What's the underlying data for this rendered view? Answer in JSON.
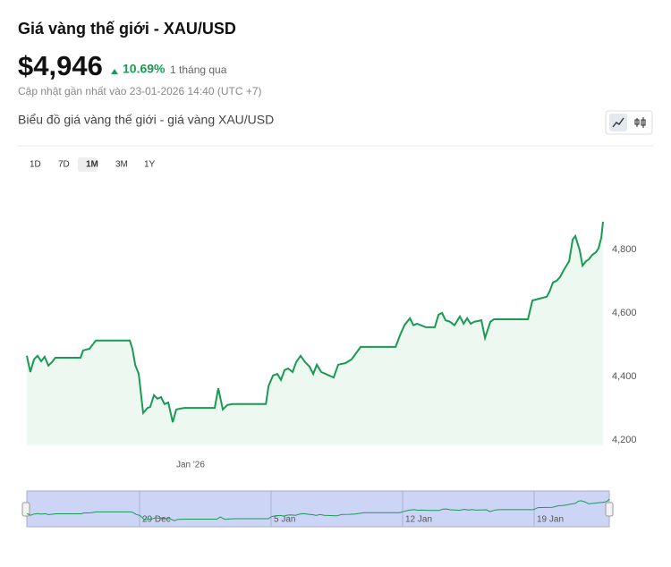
{
  "header": {
    "title": "Giá vàng thế giới - XAU/USD",
    "price": "$4,946",
    "change": "10.69%",
    "period": "1 tháng qua",
    "updated": "Cập nhật gần nhất vào 23-01-2026 14:40 (UTC +7)"
  },
  "chart_data": {
    "type": "line",
    "title": "Biểu đồ giá vàng thế giới - giá vàng XAU/USD",
    "ranges": [
      "1D",
      "7D",
      "1M",
      "3M",
      "1Y"
    ],
    "active_range": "1M",
    "x": [
      0,
      0.19,
      0.39,
      0.58,
      0.77,
      0.96,
      1.16,
      1.35,
      1.54,
      2.89,
      3.03,
      3.37,
      3.71,
      5.54,
      5.68,
      5.83,
      6.02,
      6.26,
      6.5,
      6.64,
      6.84,
      7.03,
      7.22,
      7.41,
      7.61,
      7.85,
      8.04,
      8.28,
      8.47,
      10.11,
      10.3,
      10.54,
      10.78,
      11.07,
      12.86,
      13,
      13.24,
      13.48,
      13.67,
      13.87,
      14.06,
      14.3,
      14.49,
      14.73,
      14.97,
      15.21,
      15.41,
      15.6,
      15.84,
      16.08,
      16.27,
      16.51,
      16.75,
      17.14,
      17.48,
      17.96,
      19.84,
      20.08,
      20.32,
      20.61,
      20.8,
      20.99,
      21.47,
      21.95,
      22.15,
      22.34,
      22.53,
      22.77,
      23.01,
      23.3,
      23.5,
      23.69,
      23.88,
      24.07,
      24.46,
      24.65,
      24.94,
      25.13,
      26.96,
      27.2,
      27.59,
      27.97,
      28.12,
      28.31,
      28.5,
      28.69,
      28.89,
      29.18,
      29.37,
      29.51,
      29.75,
      29.9,
      30.09,
      30.24,
      30.43,
      30.62,
      30.76,
      30.91,
      31
    ],
    "values": [
      4465,
      4414,
      4454,
      4465,
      4448,
      4462,
      4434,
      4445,
      4459,
      4459,
      4482,
      4487,
      4513,
      4513,
      4487,
      4437,
      4408,
      4285,
      4301,
      4304,
      4341,
      4330,
      4335,
      4313,
      4318,
      4256,
      4296,
      4299,
      4301,
      4301,
      4363,
      4296,
      4310,
      4313,
      4313,
      4369,
      4403,
      4408,
      4389,
      4420,
      4425,
      4414,
      4445,
      4465,
      4445,
      4431,
      4408,
      4437,
      4414,
      4408,
      4403,
      4397,
      4437,
      4442,
      4454,
      4493,
      4493,
      4530,
      4561,
      4583,
      4561,
      4566,
      4555,
      4555,
      4594,
      4600,
      4577,
      4572,
      4561,
      4589,
      4566,
      4583,
      4566,
      4572,
      4577,
      4521,
      4572,
      4580,
      4580,
      4639,
      4645,
      4651,
      4667,
      4696,
      4701,
      4713,
      4735,
      4763,
      4831,
      4842,
      4797,
      4749,
      4763,
      4769,
      4783,
      4791,
      4803,
      4837,
      4887
    ],
    "color": "#1a9a55",
    "fill": "#edf8f1",
    "xlim": [
      0,
      31
    ],
    "xticks": [
      {
        "value": 9,
        "label": "Jan '26"
      }
    ],
    "ylim": [
      4183,
      5022
    ],
    "yticks": [
      {
        "value": 4200,
        "label": "4,200"
      },
      {
        "value": 4400,
        "label": "4,400"
      },
      {
        "value": 4600,
        "label": "4,600"
      },
      {
        "value": 4800,
        "label": "4,800"
      }
    ],
    "navigator_xticks": [
      {
        "value": 6,
        "label": "29 Dec"
      },
      {
        "value": 13,
        "label": "5 Jan"
      },
      {
        "value": 20,
        "label": "12 Jan"
      },
      {
        "value": 27,
        "label": "19 Jan"
      }
    ]
  }
}
